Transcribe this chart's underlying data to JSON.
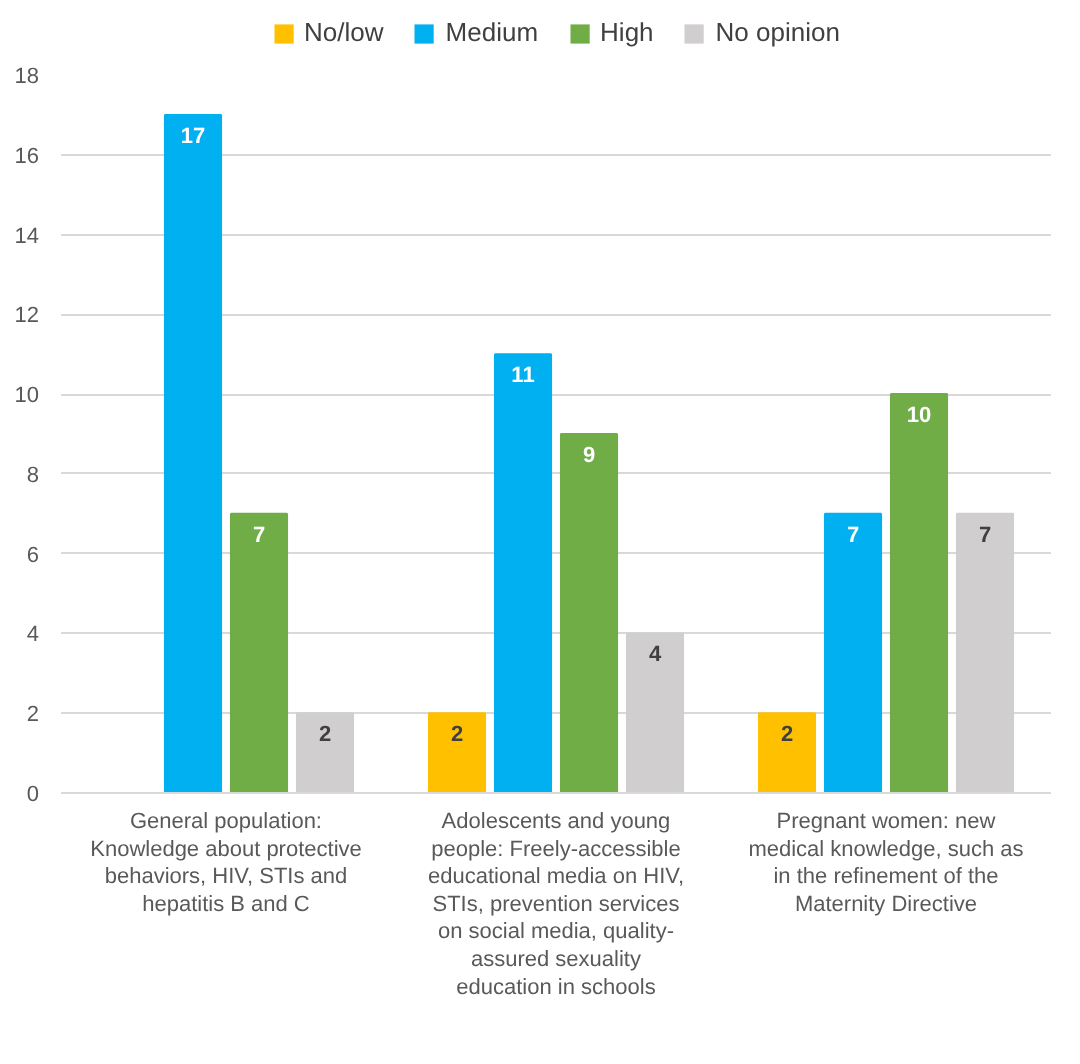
{
  "chart_data": {
    "type": "bar",
    "categories": [
      "General population: Knowledge about protective behaviors, HIV, STIs and hepatitis B and C",
      "Adolescents and young people: Freely-accessible educational media on HIV, STIs, prevention services on social media, quality-assured sexuality education in schools",
      "Pregnant women: new medical knowledge, such as in the refinement of the Maternity Directive"
    ],
    "series": [
      {
        "name": "No/low",
        "color": "#ffc000",
        "values": [
          null,
          2,
          2
        ]
      },
      {
        "name": "Medium",
        "color": "#00b0f0",
        "values": [
          17,
          11,
          7
        ]
      },
      {
        "name": "High",
        "color": "#70ad47",
        "values": [
          7,
          9,
          10
        ]
      },
      {
        "name": "No opinion",
        "color": "#d0cece",
        "values": [
          2,
          4,
          7
        ]
      }
    ],
    "ylim": [
      0,
      18
    ],
    "yticks": [
      0,
      2,
      4,
      6,
      8,
      10,
      12,
      14,
      16,
      18
    ],
    "grid": "y",
    "legend": "top",
    "data_labels": true
  }
}
